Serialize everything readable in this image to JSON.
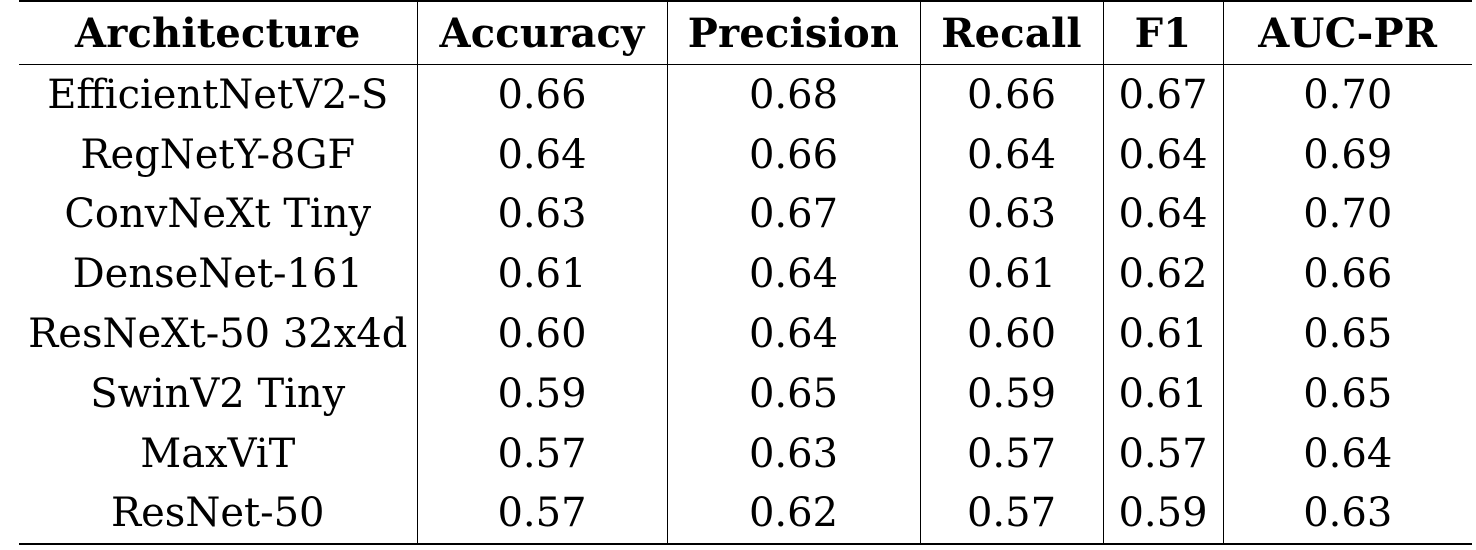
{
  "table": {
    "headers": [
      "Architecture",
      "Accuracy",
      "Precision",
      "Recall",
      "F1",
      "AUC-PR"
    ],
    "rows": [
      [
        "EfficientNetV2-S",
        "0.66",
        "0.68",
        "0.66",
        "0.67",
        "0.70"
      ],
      [
        "RegNetY-8GF",
        "0.64",
        "0.66",
        "0.64",
        "0.64",
        "0.69"
      ],
      [
        "ConvNeXt Tiny",
        "0.63",
        "0.67",
        "0.63",
        "0.64",
        "0.70"
      ],
      [
        "DenseNet-161",
        "0.61",
        "0.64",
        "0.61",
        "0.62",
        "0.66"
      ],
      [
        "ResNeXt-50 32x4d",
        "0.60",
        "0.64",
        "0.60",
        "0.61",
        "0.65"
      ],
      [
        "SwinV2 Tiny",
        "0.59",
        "0.65",
        "0.59",
        "0.61",
        "0.65"
      ],
      [
        "MaxViT",
        "0.57",
        "0.63",
        "0.57",
        "0.57",
        "0.64"
      ],
      [
        "ResNet-50",
        "0.57",
        "0.62",
        "0.57",
        "0.59",
        "0.63"
      ]
    ]
  }
}
